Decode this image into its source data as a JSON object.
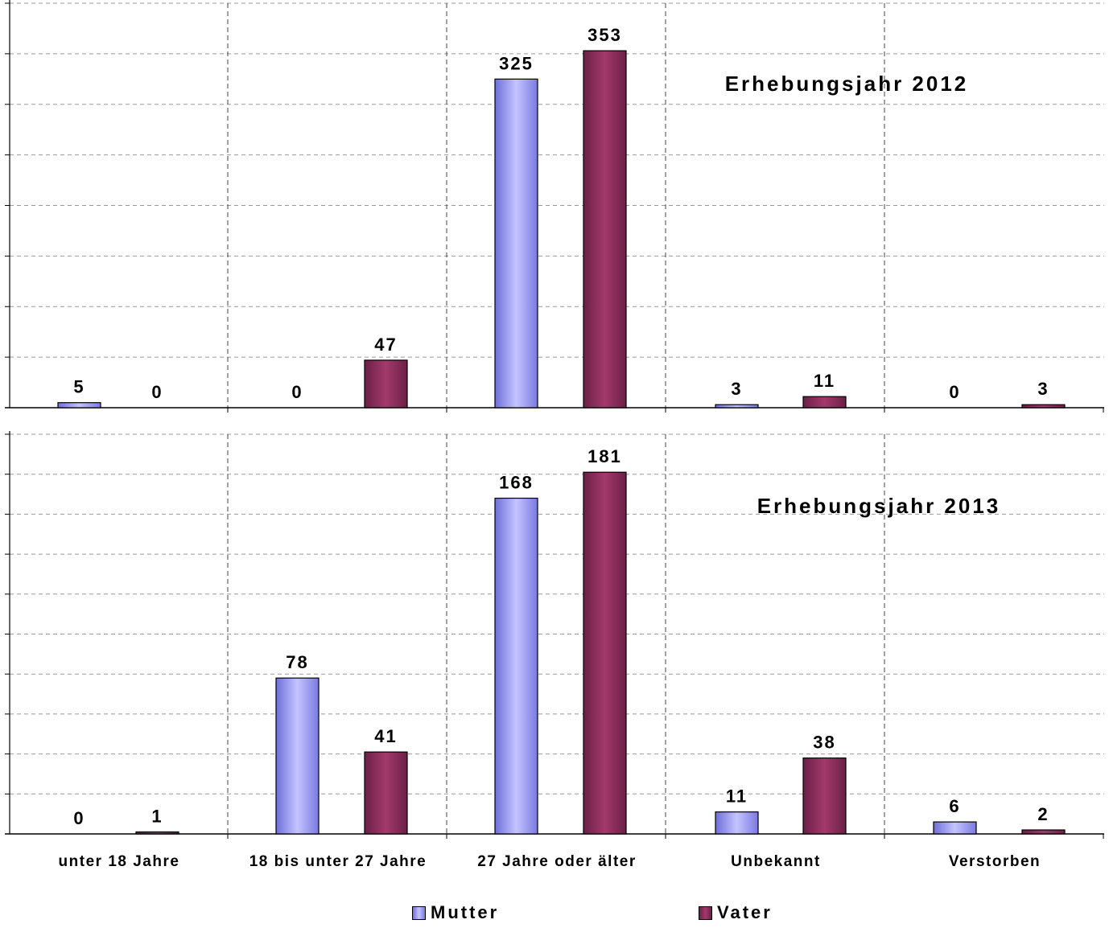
{
  "chart_data": [
    {
      "type": "bar",
      "title": "Erhebungsjahr 2012",
      "categories": [
        "unter 18 Jahre",
        "18 bis unter 27 Jahre",
        "27 Jahre oder älter",
        "Unbekannt",
        "Verstorben"
      ],
      "series": [
        {
          "name": "Mutter",
          "values": [
            5,
            0,
            325,
            3,
            0
          ],
          "color": "#9999ff"
        },
        {
          "name": "Vater",
          "values": [
            0,
            47,
            353,
            11,
            3
          ],
          "color": "#993366"
        }
      ],
      "ylim": [
        0,
        400
      ],
      "grid": true
    },
    {
      "type": "bar",
      "title": "Erhebungsjahr 2013",
      "categories": [
        "unter 18 Jahre",
        "18 bis unter 27 Jahre",
        "27 Jahre oder älter",
        "Unbekannt",
        "Verstorben"
      ],
      "series": [
        {
          "name": "Mutter",
          "values": [
            0,
            78,
            168,
            11,
            6
          ],
          "color": "#9999ff"
        },
        {
          "name": "Vater",
          "values": [
            1,
            41,
            181,
            38,
            2
          ],
          "color": "#993366"
        }
      ],
      "ylim": [
        0,
        200
      ],
      "grid": true
    }
  ],
  "legend": {
    "position": "bottom",
    "items": [
      {
        "label": "Mutter",
        "color": "#9999ff"
      },
      {
        "label": "Vater",
        "color": "#993366"
      }
    ]
  }
}
